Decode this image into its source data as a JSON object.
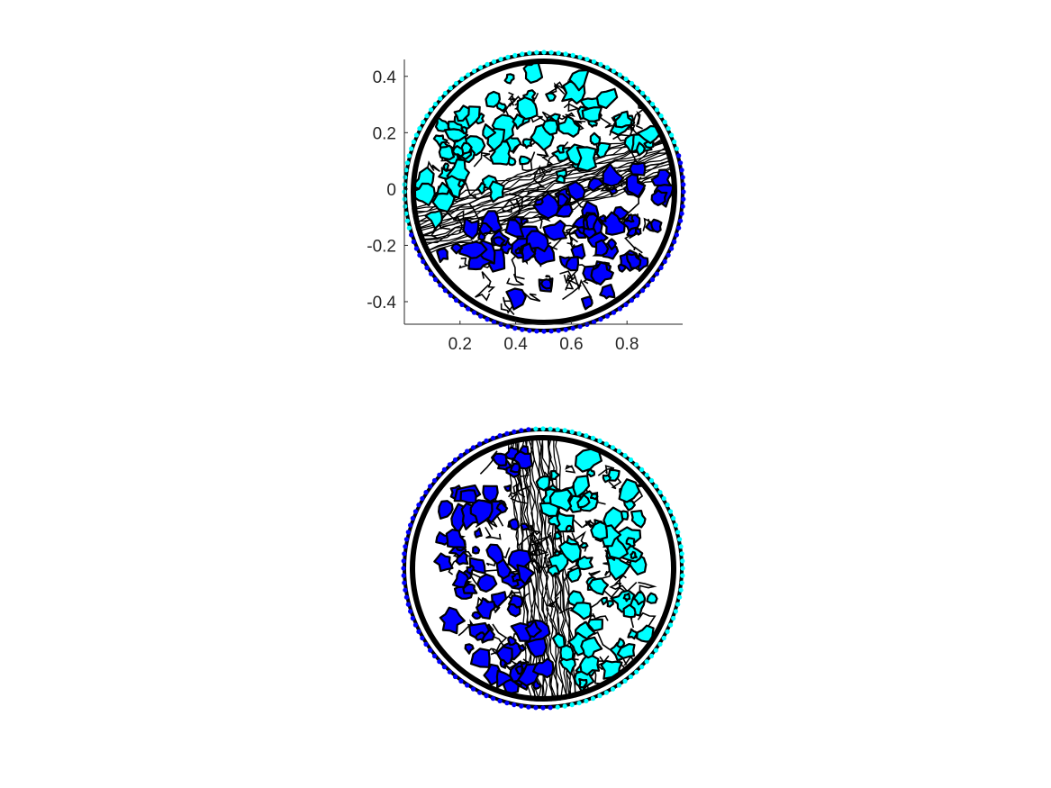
{
  "chart_data": [
    {
      "type": "contour",
      "title": "",
      "xlabel": "",
      "ylabel": "",
      "xlim": [
        0,
        1
      ],
      "ylim": [
        -0.48,
        0.46
      ],
      "xticks": [
        0.2,
        0.4,
        0.6,
        0.8
      ],
      "xtick_labels": [
        "0.2",
        "0.4",
        "0.6",
        "0.8"
      ],
      "yticks": [
        -0.4,
        -0.2,
        0,
        0.2,
        0.4
      ],
      "ytick_labels": [
        "-0.4",
        "-0.2",
        "0",
        "0.2",
        "0.4"
      ],
      "axes_visible": true,
      "grid": false,
      "legend": "none",
      "domain": {
        "shape": "disk",
        "center": [
          0.5,
          0
        ],
        "radius": 0.47
      },
      "regions": [
        {
          "color": "#00ffff",
          "side": "upper-left of interface"
        },
        {
          "color": "#0000ff",
          "side": "lower-right of interface"
        }
      ],
      "interface_angle_deg": 18,
      "line_color": "#000000"
    },
    {
      "type": "contour",
      "title": "",
      "xlabel": "",
      "ylabel": "",
      "xlim": [
        0,
        1
      ],
      "ylim": [
        -0.48,
        0.46
      ],
      "axes_visible": false,
      "grid": false,
      "legend": "none",
      "domain": {
        "shape": "disk",
        "center": [
          0.5,
          0
        ],
        "radius": 0.47
      },
      "regions": [
        {
          "color": "#0000ff",
          "side": "left of interface"
        },
        {
          "color": "#00ffff",
          "side": "right of interface"
        }
      ],
      "interface_angle_deg": 95,
      "line_color": "#000000"
    }
  ]
}
